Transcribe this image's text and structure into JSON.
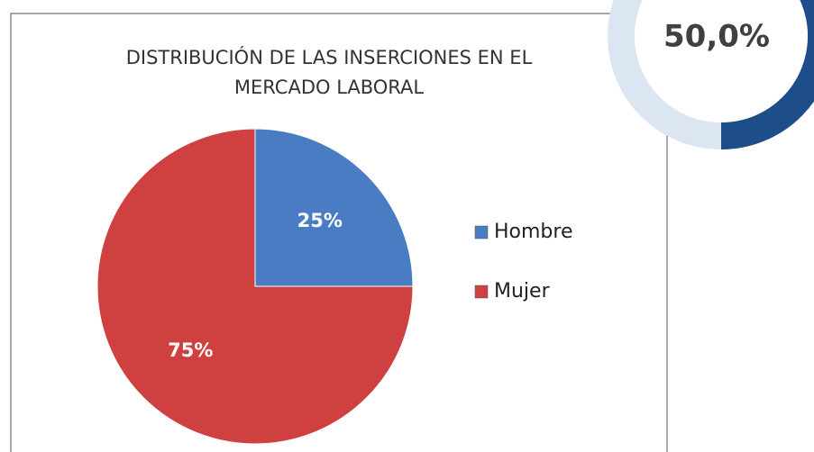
{
  "chart_data": [
    {
      "type": "pie",
      "title": "DISTRIBUCIÓN DE LAS INSERCIONES EN EL MERCADO LABORAL",
      "categories": [
        "Hombre",
        "Mujer"
      ],
      "values": [
        25,
        75
      ],
      "value_labels": [
        "25%",
        "75%"
      ],
      "colors": [
        "#4a7cc4",
        "#cf4040"
      ],
      "legend": "right"
    },
    {
      "type": "donut",
      "values": [
        50
      ],
      "value_labels": [
        "50,0%"
      ],
      "colors": [
        "#1d4e89",
        "#dce6f2"
      ]
    }
  ]
}
